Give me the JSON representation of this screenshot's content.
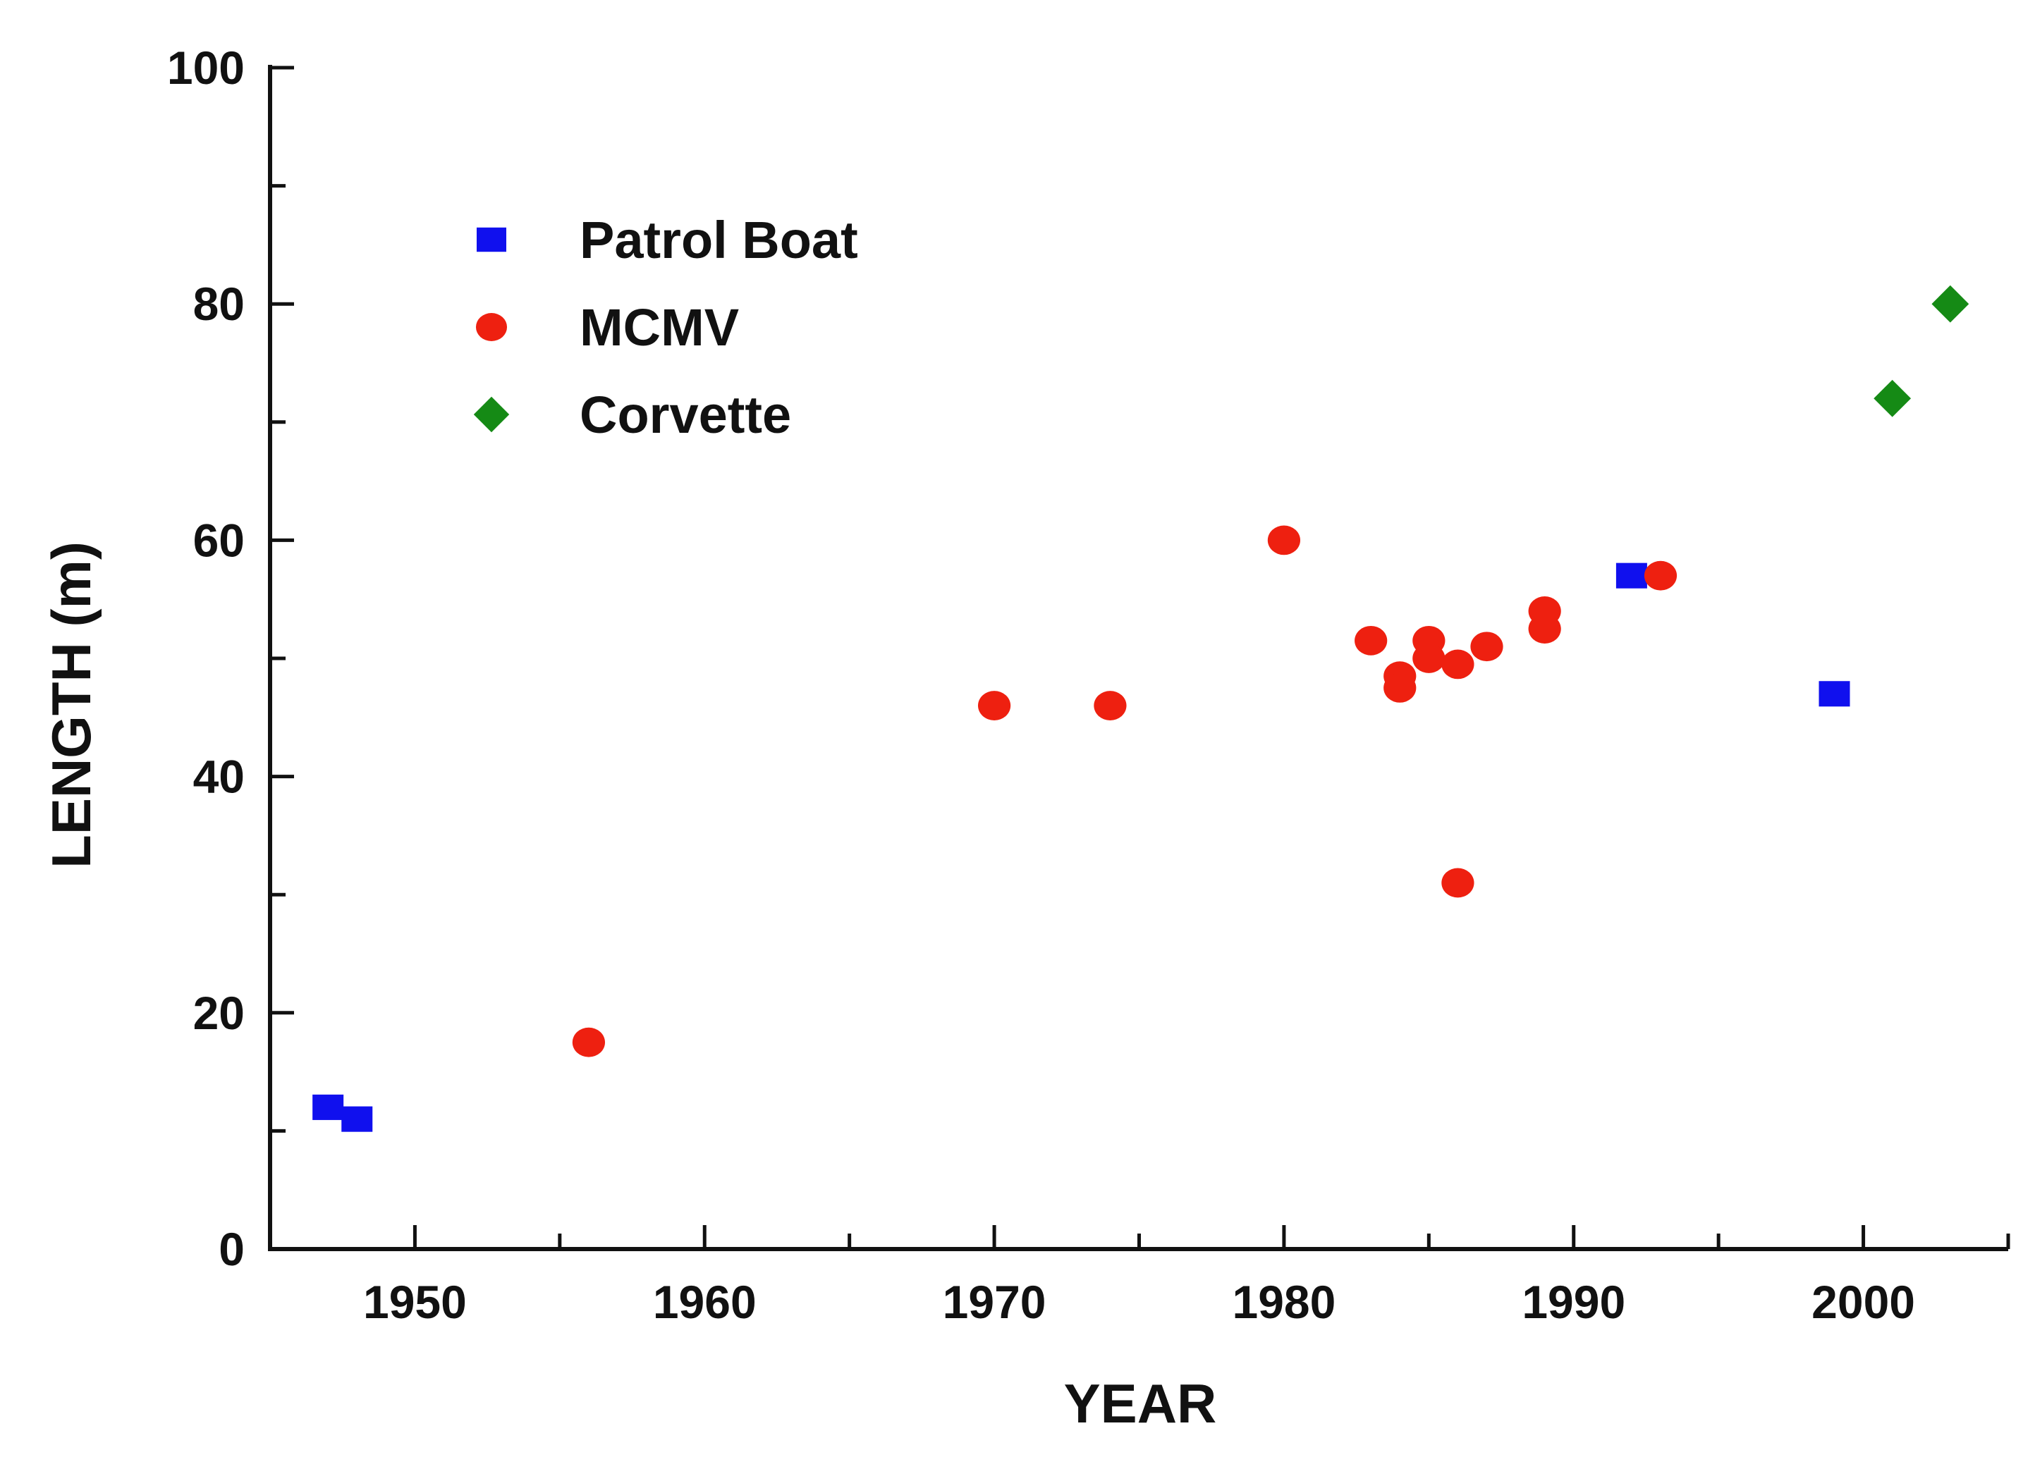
{
  "chart_data": {
    "type": "scatter",
    "title": "",
    "xlabel": "YEAR",
    "ylabel": "LENGTH (m)",
    "xlim": [
      1945,
      2005
    ],
    "ylim": [
      0,
      100
    ],
    "x_ticks": [
      1950,
      1960,
      1970,
      1980,
      1990,
      2000
    ],
    "y_ticks": [
      0,
      20,
      40,
      60,
      80,
      100
    ],
    "grid": false,
    "legend_position": "top-left",
    "series": [
      {
        "name": "Patrol Boat",
        "marker": "square",
        "color": "#1010ee",
        "points": [
          {
            "x": 1947,
            "y": 12
          },
          {
            "x": 1948,
            "y": 11
          },
          {
            "x": 1992,
            "y": 57
          },
          {
            "x": 1999,
            "y": 47
          }
        ]
      },
      {
        "name": "MCMV",
        "marker": "circle",
        "color": "#ee2010",
        "points": [
          {
            "x": 1956,
            "y": 17.5
          },
          {
            "x": 1970,
            "y": 46
          },
          {
            "x": 1974,
            "y": 46
          },
          {
            "x": 1980,
            "y": 60
          },
          {
            "x": 1983,
            "y": 51.5
          },
          {
            "x": 1984,
            "y": 48.5
          },
          {
            "x": 1984,
            "y": 47.5
          },
          {
            "x": 1985,
            "y": 51.5
          },
          {
            "x": 1985,
            "y": 50
          },
          {
            "x": 1986,
            "y": 49.5
          },
          {
            "x": 1986,
            "y": 31
          },
          {
            "x": 1987,
            "y": 51
          },
          {
            "x": 1989,
            "y": 54
          },
          {
            "x": 1989,
            "y": 52.5
          },
          {
            "x": 1993,
            "y": 57
          }
        ]
      },
      {
        "name": "Corvette",
        "marker": "diamond",
        "color": "#158a15",
        "points": [
          {
            "x": 2001,
            "y": 72
          },
          {
            "x": 2003,
            "y": 80
          }
        ]
      }
    ]
  }
}
